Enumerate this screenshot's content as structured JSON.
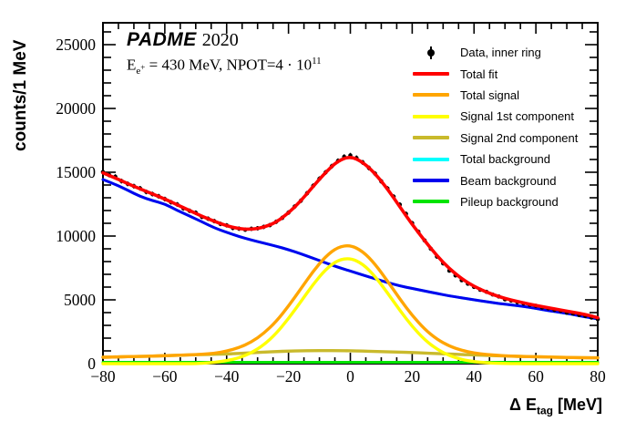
{
  "header": {
    "experiment": "PADME",
    "year": "2020",
    "conditions": {
      "base": "E",
      "sub_main": "e",
      "sub_sup": "+",
      "mid": " = 430 MeV, NPOT=4 · 10",
      "exp": "11"
    }
  },
  "chart_data": {
    "type": "line",
    "title": "",
    "xlabel": "Δ E_tag [MeV]",
    "xlabel_parts": {
      "prefix": "Δ E",
      "sub": "tag",
      "suffix": " [MeV]"
    },
    "ylabel": "counts/1 MeV",
    "xlim": [
      -80,
      80
    ],
    "ylim": [
      0,
      26714
    ],
    "x_major_ticks": [
      -80,
      -60,
      -40,
      -20,
      0,
      20,
      40,
      60,
      80
    ],
    "x_minor_step": 5,
    "y_major_ticks": [
      0,
      5000,
      10000,
      15000,
      20000,
      25000
    ],
    "y_minor_step": 1000,
    "grid": false,
    "legend_position": "top-right",
    "frame_color": "#000000",
    "x_coarse": [
      -80,
      -76,
      -72,
      -68,
      -64,
      -60,
      -56,
      -52,
      -48,
      -44,
      -40,
      -36,
      -32,
      -28,
      -24,
      -20,
      -16,
      -12,
      -8,
      -4,
      0,
      4,
      8,
      12,
      16,
      20,
      24,
      28,
      32,
      36,
      40,
      44,
      48,
      52,
      56,
      60,
      64,
      68,
      72,
      76,
      80
    ],
    "x_fine": [
      -80,
      -78,
      -76,
      -74,
      -72,
      -70,
      -68,
      -66,
      -64,
      -62,
      -60,
      -58,
      -56,
      -54,
      -52,
      -50,
      -48,
      -46,
      -44,
      -42,
      -40,
      -38,
      -36,
      -34,
      -32,
      -30,
      -28,
      -26,
      -24,
      -22,
      -20,
      -18,
      -16,
      -14,
      -12,
      -10,
      -8,
      -6,
      -4,
      -2,
      0,
      2,
      4,
      6,
      8,
      10,
      12,
      14,
      16,
      18,
      20,
      22,
      24,
      26,
      28,
      30,
      32,
      34,
      36,
      38,
      40,
      42,
      44,
      46,
      48,
      50,
      52,
      54,
      56,
      58,
      60,
      62,
      64,
      66,
      68,
      70,
      72,
      74,
      76,
      78,
      80
    ],
    "series": [
      {
        "id": "data-inner-ring",
        "name": "Data, inner ring",
        "style": "points",
        "color": "#000000",
        "width": 1.3,
        "z": 7,
        "grid": "fine",
        "values": [
          15020,
          14790,
          14650,
          14310,
          14090,
          13910,
          13740,
          13460,
          13290,
          13120,
          12900,
          12650,
          12480,
          12170,
          11980,
          11830,
          11500,
          11360,
          11170,
          10950,
          10840,
          10630,
          10580,
          10500,
          10570,
          10610,
          10720,
          10860,
          11120,
          11430,
          11840,
          12310,
          12770,
          13350,
          13940,
          14490,
          14990,
          15470,
          15890,
          16210,
          16320,
          16120,
          15770,
          15340,
          14890,
          14290,
          13730,
          13090,
          12460,
          11740,
          11010,
          10340,
          9660,
          9010,
          8390,
          7860,
          7290,
          6910,
          6540,
          6260,
          6010,
          5790,
          5630,
          5420,
          5260,
          5040,
          4940,
          4810,
          4710,
          4610,
          4530,
          4390,
          4330,
          4210,
          4140,
          3990,
          3930,
          3810,
          3740,
          3610,
          3490
        ]
      },
      {
        "id": "total-fit",
        "name": "Total fit",
        "style": "line",
        "color": "#ff0000",
        "width": 3.6,
        "z": 8,
        "grid": "coarse",
        "values": [
          14950,
          14550,
          14100,
          13700,
          13300,
          12900,
          12450,
          12000,
          11550,
          11150,
          10800,
          10570,
          10520,
          10680,
          11080,
          11800,
          12750,
          13900,
          15000,
          15900,
          16250,
          15800,
          14900,
          13700,
          12300,
          10900,
          9650,
          8450,
          7450,
          6650,
          6050,
          5600,
          5250,
          4980,
          4760,
          4560,
          4380,
          4200,
          4030,
          3850,
          3600
        ]
      },
      {
        "id": "total-signal",
        "name": "Total signal",
        "style": "line",
        "color": "#ffa500",
        "width": 3.4,
        "z": 6,
        "grid": "coarse",
        "values": [
          500,
          520,
          545,
          565,
          590,
          620,
          650,
          690,
          730,
          810,
          980,
          1250,
          1690,
          2370,
          3300,
          4500,
          5870,
          7250,
          8410,
          9140,
          9290,
          8810,
          7810,
          6480,
          5070,
          3770,
          2710,
          1910,
          1370,
          1040,
          830,
          710,
          640,
          595,
          560,
          535,
          515,
          495,
          480,
          465,
          455
        ]
      },
      {
        "id": "signal-1st-component",
        "name": "Signal 1st component",
        "style": "line",
        "color": "#ffff00",
        "width": 3.4,
        "z": 5,
        "grid": "coarse",
        "values": [
          0,
          0,
          0,
          0,
          0,
          0,
          0,
          0,
          20,
          100,
          225,
          450,
          845,
          1465,
          2360,
          3520,
          4860,
          6225,
          7390,
          8125,
          8280,
          7820,
          6845,
          5555,
          4175,
          2910,
          1875,
          1125,
          625,
          320,
          150,
          65,
          25,
          10,
          0,
          0,
          0,
          0,
          0,
          0,
          0
        ]
      },
      {
        "id": "signal-2nd-component",
        "name": "Signal 2nd component",
        "style": "line",
        "color": "#c9ba2c",
        "width": 3.4,
        "z": 4,
        "grid": "coarse",
        "values": [
          500,
          520,
          545,
          565,
          590,
          620,
          650,
          685,
          710,
          730,
          755,
          800,
          850,
          900,
          945,
          980,
          1005,
          1020,
          1025,
          1020,
          1005,
          985,
          960,
          930,
          900,
          865,
          830,
          790,
          750,
          715,
          680,
          645,
          615,
          585,
          560,
          535,
          515,
          495,
          480,
          465,
          455
        ]
      },
      {
        "id": "total-background",
        "name": "Total background",
        "style": "line",
        "color": "#00ffff",
        "width": 3.0,
        "z": 2,
        "grid": "coarse",
        "values": [
          14430,
          14050,
          13590,
          13110,
          12780,
          12520,
          12010,
          11570,
          11120,
          10640,
          10290,
          9960,
          9690,
          9440,
          9210,
          8930,
          8610,
          8260,
          7890,
          7560,
          7260,
          6940,
          6660,
          6360,
          6090,
          5900,
          5690,
          5510,
          5310,
          5160,
          5000,
          4860,
          4710,
          4600,
          4490,
          4330,
          4160,
          4010,
          3860,
          3660,
          3510
        ]
      },
      {
        "id": "beam-background",
        "name": "Beam background",
        "style": "line",
        "color": "#0000ee",
        "width": 3.0,
        "z": 3,
        "grid": "coarse",
        "values": [
          14430,
          14050,
          13590,
          13110,
          12780,
          12520,
          12010,
          11570,
          11120,
          10640,
          10290,
          9960,
          9690,
          9440,
          9210,
          8930,
          8610,
          8260,
          7890,
          7560,
          7260,
          6940,
          6660,
          6360,
          6090,
          5900,
          5690,
          5510,
          5310,
          5160,
          5000,
          4860,
          4710,
          4600,
          4490,
          4330,
          4160,
          4010,
          3860,
          3660,
          3510
        ]
      },
      {
        "id": "pileup-background",
        "name": "Pileup background",
        "style": "line",
        "color": "#00e400",
        "width": 3.0,
        "z": 1,
        "grid": "coarse",
        "values": [
          110,
          110,
          110,
          110,
          110,
          110,
          110,
          110,
          110,
          110,
          110,
          110,
          110,
          110,
          110,
          110,
          110,
          110,
          110,
          110,
          110,
          110,
          110,
          110,
          110,
          110,
          110,
          110,
          110,
          110,
          110,
          110,
          110,
          110,
          110,
          110,
          110,
          110,
          110,
          110,
          110
        ]
      }
    ]
  }
}
